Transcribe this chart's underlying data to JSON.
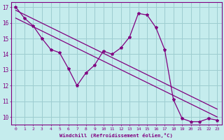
{
  "xlabel": "Windchill (Refroidissement éolien,°C)",
  "bg_color": "#c5eced",
  "line_color": "#800080",
  "grid_color": "#9dcdd0",
  "xmin": -0.5,
  "xmax": 23.5,
  "ymin": 9.5,
  "ymax": 17.3,
  "yticks": [
    10,
    11,
    12,
    13,
    14,
    15,
    16,
    17
  ],
  "xticks": [
    0,
    1,
    2,
    3,
    4,
    5,
    6,
    7,
    8,
    9,
    10,
    11,
    12,
    13,
    14,
    15,
    16,
    17,
    18,
    19,
    20,
    21,
    22,
    23
  ],
  "line_main": [
    17.0,
    16.3,
    15.8,
    15.0,
    14.3,
    14.1,
    13.1,
    12.0,
    12.8,
    13.3,
    14.2,
    14.0,
    14.4,
    15.1,
    16.6,
    16.5,
    15.7,
    14.3,
    11.1,
    9.9,
    9.7,
    9.7,
    9.9,
    9.8
  ],
  "line_trend1_x": [
    0,
    23
  ],
  "line_trend1_y": [
    16.8,
    10.5
  ],
  "line_trend2_x": [
    0,
    23
  ],
  "line_trend2_y": [
    16.3,
    10.0
  ]
}
